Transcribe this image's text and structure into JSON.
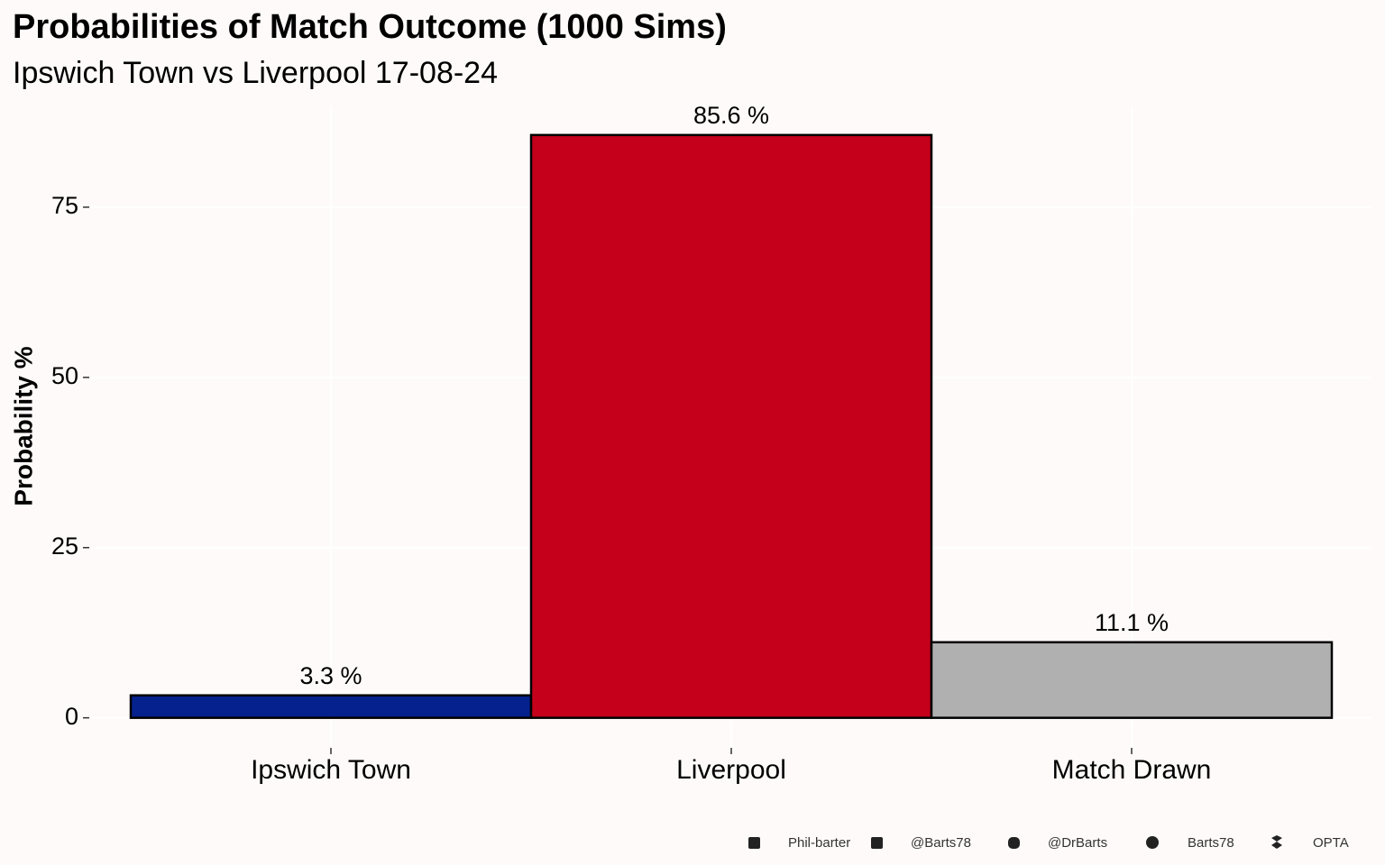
{
  "chart_data": {
    "type": "bar",
    "title": "Probabilities of Match Outcome (1000 Sims)",
    "subtitle": "Ipswich Town vs Liverpool 17-08-24",
    "y_label": "Probability %",
    "categories": [
      "Ipswich Town",
      "Liverpool",
      "Match Drawn"
    ],
    "values": [
      3.3,
      85.6,
      11.1
    ],
    "value_labels": [
      "3.3  %",
      "85.6  %",
      "11.1  %"
    ],
    "colors": [
      "#04218e",
      "#c4001a",
      "#b0b0b0"
    ],
    "ylim": [
      -4.28,
      89.88
    ],
    "yticks": [
      0,
      25,
      50,
      75
    ],
    "grid": true,
    "caption": [
      "Phil-barter",
      "@Barts78",
      "@DrBarts",
      "Barts78",
      "OPTA"
    ]
  }
}
